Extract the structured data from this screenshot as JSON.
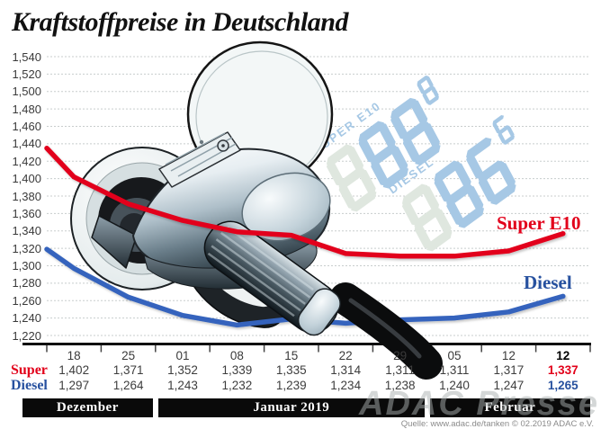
{
  "title": "Kraftstoffpreise in Deutschland",
  "watermark": "ADAC Presse",
  "source": "Quelle: www.adac.de/tanken  © 02.2019  ADAC e.V.",
  "series_labels": {
    "super": "Super E10",
    "diesel": "Diesel"
  },
  "chart_data": {
    "type": "line",
    "categories": [
      "18",
      "25",
      "01",
      "08",
      "15",
      "22",
      "29",
      "05",
      "12",
      "12"
    ],
    "ylim": [
      1220,
      1540
    ],
    "ytick_step": 20,
    "grid": true,
    "y_tick_labels": [
      "1,540",
      "1,520",
      "1,500",
      "1,480",
      "1,460",
      "1,440",
      "1,420",
      "1,400",
      "1,380",
      "1,360",
      "1,340",
      "1,320",
      "1,300",
      "1,280",
      "1,260",
      "1,240",
      "1,220"
    ],
    "series": [
      {
        "name": "Super E10",
        "color": "#e2001a",
        "left_edge_value": 1435,
        "values": [
          1402,
          1371,
          1352,
          1339,
          1335,
          1314,
          1311,
          1311,
          1317,
          1337
        ]
      },
      {
        "name": "Diesel",
        "color": "#3564bd",
        "left_edge_value": 1319,
        "values": [
          1297,
          1264,
          1243,
          1232,
          1239,
          1234,
          1238,
          1240,
          1247,
          1265
        ]
      }
    ],
    "months": [
      {
        "label": "Dezember",
        "span": 2
      },
      {
        "label": "Januar 2019",
        "span": 5
      },
      {
        "label": "Februar",
        "span": 3
      }
    ]
  },
  "table": {
    "columns": [
      "18",
      "25",
      "01",
      "08",
      "15",
      "22",
      "29",
      "05",
      "12",
      "12"
    ],
    "rows": [
      {
        "label": "Super",
        "color": "#e2001a",
        "values": [
          "1,402",
          "1,371",
          "1,352",
          "1,339",
          "1,335",
          "1,314",
          "1,311",
          "1,311",
          "1,317",
          "1,337"
        ]
      },
      {
        "label": "Diesel",
        "color": "#27519f",
        "values": [
          "1,297",
          "1,264",
          "1,243",
          "1,232",
          "1,239",
          "1,234",
          "1,238",
          "1,240",
          "1,247",
          "1,265"
        ]
      }
    ]
  },
  "price_displays": [
    {
      "label": "SUPER E10",
      "digits": "888",
      "sup": "8"
    },
    {
      "label": "DIESEL",
      "digits": "886",
      "sup": "6"
    }
  ],
  "colors": {
    "super_red": "#e2001a",
    "diesel_blue": "#3564bd",
    "diesel_label_blue": "#27519f",
    "display_lit": "#a6c8e5",
    "display_ghost": "#dfe7df",
    "grid": "#c8cdcd",
    "band_bg": "#0a0a0a"
  }
}
